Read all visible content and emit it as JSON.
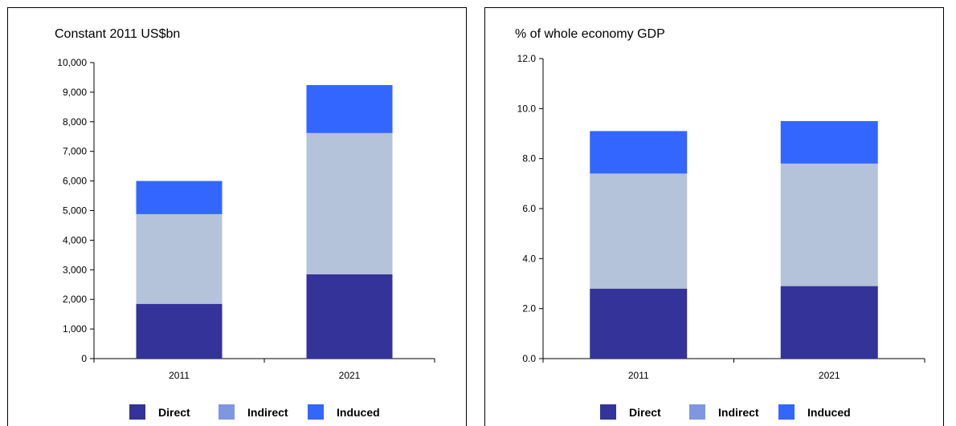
{
  "legend": [
    "Direct",
    "Indirect",
    "Induced"
  ],
  "chart_data": [
    {
      "type": "bar",
      "stacked": true,
      "title": "Constant 2011 US$bn",
      "categories": [
        "2011",
        "2021"
      ],
      "series": [
        {
          "name": "Direct",
          "values": [
            1850,
            2850
          ],
          "color": "#333399"
        },
        {
          "name": "Indirect",
          "values": [
            3030,
            4770
          ],
          "color": "#b4c2da"
        },
        {
          "name": "Induced",
          "values": [
            1120,
            1620
          ],
          "color": "#3366ff"
        }
      ],
      "ylim": [
        0,
        10000
      ],
      "yticks": [
        "0",
        "1,000",
        "2,000",
        "3,000",
        "4,000",
        "5,000",
        "6,000",
        "7,000",
        "8,000",
        "9,000",
        "10,000"
      ],
      "legend_position": "bottom",
      "grid": false
    },
    {
      "type": "bar",
      "stacked": true,
      "title": "% of whole economy GDP",
      "categories": [
        "2011",
        "2021"
      ],
      "series": [
        {
          "name": "Direct",
          "values": [
            2.8,
            2.9
          ],
          "color": "#333399"
        },
        {
          "name": "Indirect",
          "values": [
            4.6,
            4.9
          ],
          "color": "#b4c2da"
        },
        {
          "name": "Induced",
          "values": [
            1.7,
            1.7
          ],
          "color": "#3366ff"
        }
      ],
      "ylim": [
        0,
        12
      ],
      "yticks": [
        "0.0",
        "2.0",
        "4.0",
        "6.0",
        "8.0",
        "10.0",
        "12.0"
      ],
      "legend_position": "bottom",
      "grid": false
    }
  ],
  "legend_colors": [
    "#333399",
    "#7f97e0",
    "#3366ff"
  ]
}
